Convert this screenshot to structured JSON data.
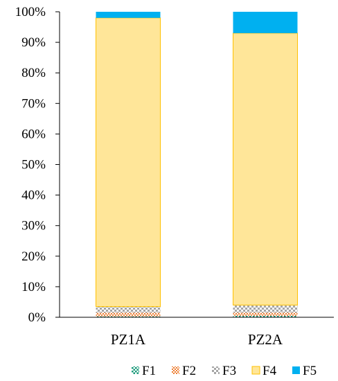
{
  "chart_data": {
    "type": "bar",
    "stacked": "percent",
    "categories": [
      "PZ1A",
      "PZ2A"
    ],
    "series": [
      {
        "name": "F1",
        "values": [
          0.3,
          0.5
        ],
        "color": "#1a9a7a",
        "pattern": "green-dots"
      },
      {
        "name": "F2",
        "values": [
          1.2,
          1.0
        ],
        "color": "#ed7d31",
        "pattern": "orange-check"
      },
      {
        "name": "F3",
        "values": [
          2.0,
          2.5
        ],
        "color": "#a5a5a5",
        "pattern": "gray-check"
      },
      {
        "name": "F4",
        "values": [
          94.5,
          89.0
        ],
        "color": "#ffe699",
        "border": "#ffc000"
      },
      {
        "name": "F5",
        "values": [
          2.0,
          7.0
        ],
        "color": "#00b0f0"
      }
    ],
    "y_ticks": [
      "0%",
      "10%",
      "20%",
      "30%",
      "40%",
      "50%",
      "60%",
      "70%",
      "80%",
      "90%",
      "100%"
    ],
    "ylim": [
      0,
      100
    ],
    "grid": false,
    "legend": "bottom-right",
    "title": "",
    "xlabel": "",
    "ylabel": ""
  }
}
